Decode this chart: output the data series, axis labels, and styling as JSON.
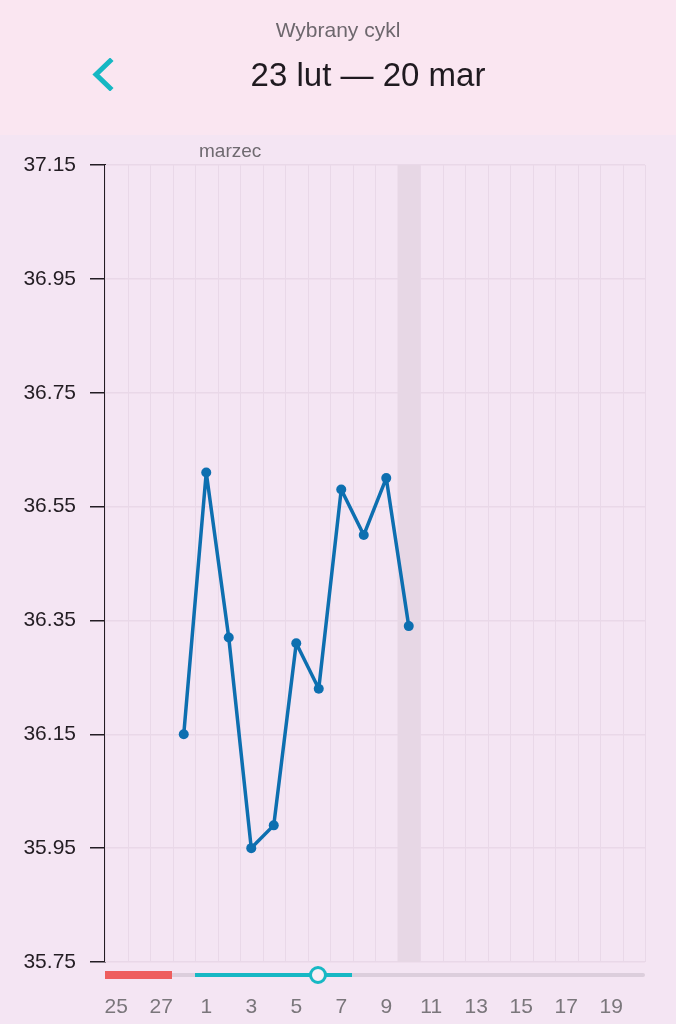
{
  "chart_data": {
    "type": "line",
    "subtitle": "Wybrany cykl",
    "title": "23 lut — 20 mar",
    "x": [
      "--02-28",
      "--03-01",
      "--03-02",
      "--03-03",
      "--03-04",
      "--03-05",
      "--03-06",
      "--03-07",
      "--03-08",
      "--03-09",
      "--03-10"
    ],
    "values": [
      36.15,
      36.61,
      36.32,
      35.95,
      35.99,
      36.31,
      36.23,
      36.58,
      36.5,
      36.6,
      36.34
    ],
    "color": "#0d6fb0",
    "xlim": [
      "--02-24T12:00",
      "--03-20T12:00"
    ],
    "xticks": [
      {
        "value": "--02-25",
        "label": "25"
      },
      {
        "value": "--02-27",
        "label": "27"
      },
      {
        "value": "--03-01",
        "label": "1"
      },
      {
        "value": "--03-03",
        "label": "3"
      },
      {
        "value": "--03-05",
        "label": "5"
      },
      {
        "value": "--03-07",
        "label": "7"
      },
      {
        "value": "--03-09",
        "label": "9"
      },
      {
        "value": "--03-11",
        "label": "11"
      },
      {
        "value": "--03-13",
        "label": "13"
      },
      {
        "value": "--03-15",
        "label": "15"
      },
      {
        "value": "--03-17",
        "label": "17"
      },
      {
        "value": "--03-19",
        "label": "19"
      }
    ],
    "ylim": [
      35.75,
      37.15
    ],
    "yticks": [
      35.75,
      35.95,
      36.15,
      36.35,
      36.55,
      36.75,
      36.95,
      37.15
    ],
    "grid": true,
    "marker": "circle",
    "bands": [
      {
        "axis": "x",
        "from": "--03-09T12:00",
        "to": "--03-10T12:00",
        "color": "#e7d7e5"
      }
    ],
    "annotations": [
      "marzec"
    ]
  }
}
